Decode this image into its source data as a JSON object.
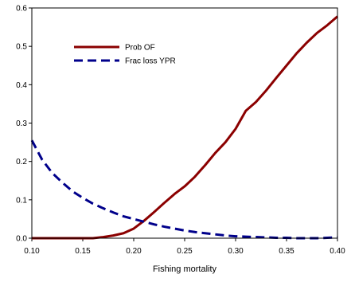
{
  "chart_data": {
    "type": "line",
    "title": "",
    "xlabel": "Fishing mortality",
    "ylabel": "",
    "xlim": [
      0.1,
      0.4
    ],
    "ylim": [
      0.0,
      0.6
    ],
    "x_ticks": [
      "0.10",
      "0.15",
      "0.20",
      "0.25",
      "0.30",
      "0.35",
      "0.40"
    ],
    "y_ticks": [
      "0.0",
      "0.1",
      "0.2",
      "0.3",
      "0.4",
      "0.5",
      "0.6"
    ],
    "grid": false,
    "legend_position": "top-left",
    "series": [
      {
        "name": "Prob OF",
        "color": "#8b0000",
        "style": "solid",
        "x": [
          0.1,
          0.12,
          0.14,
          0.16,
          0.17,
          0.18,
          0.19,
          0.2,
          0.21,
          0.22,
          0.23,
          0.24,
          0.25,
          0.26,
          0.27,
          0.28,
          0.29,
          0.3,
          0.31,
          0.32,
          0.33,
          0.34,
          0.35,
          0.36,
          0.37,
          0.38,
          0.39,
          0.4
        ],
        "values": [
          0.0,
          0.0,
          0.0,
          0.0,
          0.003,
          0.007,
          0.013,
          0.025,
          0.045,
          0.068,
          0.092,
          0.115,
          0.135,
          0.16,
          0.19,
          0.222,
          0.25,
          0.285,
          0.332,
          0.355,
          0.385,
          0.418,
          0.45,
          0.482,
          0.51,
          0.535,
          0.555,
          0.578
        ]
      },
      {
        "name": "Frac loss YPR",
        "color": "#00008b",
        "style": "dashed",
        "x": [
          0.1,
          0.11,
          0.12,
          0.13,
          0.14,
          0.15,
          0.16,
          0.17,
          0.18,
          0.19,
          0.2,
          0.21,
          0.22,
          0.23,
          0.24,
          0.25,
          0.26,
          0.27,
          0.28,
          0.29,
          0.3,
          0.31,
          0.32,
          0.33,
          0.34,
          0.35,
          0.36,
          0.37,
          0.38,
          0.39,
          0.4
        ],
        "values": [
          0.255,
          0.205,
          0.17,
          0.145,
          0.122,
          0.105,
          0.09,
          0.078,
          0.067,
          0.057,
          0.05,
          0.043,
          0.036,
          0.03,
          0.025,
          0.02,
          0.016,
          0.013,
          0.01,
          0.007,
          0.005,
          0.004,
          0.003,
          0.002,
          0.001,
          0.001,
          0.0,
          0.0,
          0.0,
          0.001,
          0.002
        ]
      }
    ]
  }
}
